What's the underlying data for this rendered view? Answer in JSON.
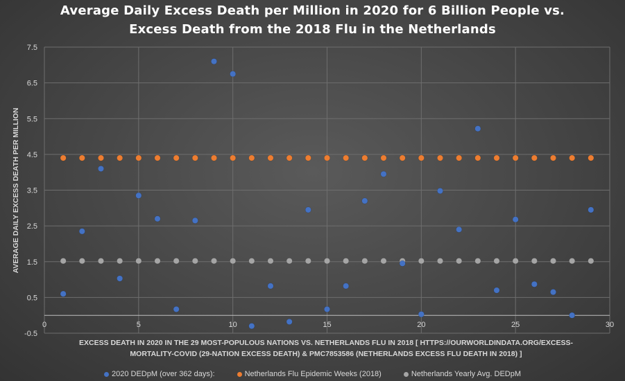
{
  "chart_data": {
    "type": "scatter",
    "title_line1": "Average Daily Excess Death per Million in 2020 for 6 Billion People vs.",
    "title_line2": "Excess Death from the 2018 Flu in the Netherlands",
    "xlabel": "EXCESS DEATH IN 2020 IN THE 29 MOST-POPULOUS NATIONS VS. NETHERLANDS FLU IN 2018 [ HTTPS://OURWORLDINDATA.ORG/EXCESS-MORTALITY-COVID (29-NATION EXCESS DEATH) & PMC7853586 (NETHERLANDS EXCESS FLU DEATH IN 2018) ]",
    "ylabel": "AVERAGE DAILY EXCESS DEATH PER MILLION",
    "xlim": [
      0,
      30
    ],
    "ylim": [
      -0.5,
      7.5
    ],
    "xticks": [
      0,
      5,
      10,
      15,
      20,
      25,
      30
    ],
    "yticks": [
      -0.5,
      0.5,
      1.5,
      2.5,
      3.5,
      4.5,
      5.5,
      6.5,
      7.5
    ],
    "ytick_labels": [
      "-0.5",
      "0.5",
      "1.5",
      "2.5",
      "3.5",
      "4.5",
      "5.5",
      "6.5",
      "7.5"
    ],
    "grid": true,
    "legend_position": "bottom",
    "series": [
      {
        "name": "2020 DEDpM (over 362 days):",
        "color": "#4472c4",
        "x": [
          1,
          2,
          3,
          4,
          5,
          6,
          7,
          8,
          9,
          10,
          11,
          12,
          13,
          14,
          15,
          16,
          17,
          18,
          19,
          20,
          21,
          22,
          23,
          24,
          25,
          26,
          27,
          28,
          29
        ],
        "y": [
          0.6,
          2.35,
          4.1,
          1.03,
          3.35,
          2.7,
          0.17,
          2.65,
          7.1,
          6.75,
          -0.3,
          0.82,
          -0.18,
          2.95,
          0.17,
          0.82,
          3.2,
          3.95,
          1.45,
          0.03,
          3.48,
          2.4,
          5.22,
          0.7,
          2.68,
          0.87,
          0.65,
          0.0,
          2.95
        ]
      },
      {
        "name": "Netherlands Flu Epidemic Weeks (2018)",
        "color": "#ed7d31",
        "x": [
          1,
          2,
          3,
          4,
          5,
          6,
          7,
          8,
          9,
          10,
          11,
          12,
          13,
          14,
          15,
          16,
          17,
          18,
          19,
          20,
          21,
          22,
          23,
          24,
          25,
          26,
          27,
          28,
          29
        ],
        "y": [
          4.4,
          4.4,
          4.4,
          4.4,
          4.4,
          4.4,
          4.4,
          4.4,
          4.4,
          4.4,
          4.4,
          4.4,
          4.4,
          4.4,
          4.4,
          4.4,
          4.4,
          4.4,
          4.4,
          4.4,
          4.4,
          4.4,
          4.4,
          4.4,
          4.4,
          4.4,
          4.4,
          4.4,
          4.4
        ]
      },
      {
        "name": "Netherlands Yearly Avg. DEDpM",
        "color": "#a5a5a5",
        "x": [
          1,
          2,
          3,
          4,
          5,
          6,
          7,
          8,
          9,
          10,
          11,
          12,
          13,
          14,
          15,
          16,
          17,
          18,
          19,
          20,
          21,
          22,
          23,
          24,
          25,
          26,
          27,
          28,
          29
        ],
        "y": [
          1.52,
          1.52,
          1.52,
          1.52,
          1.52,
          1.52,
          1.52,
          1.52,
          1.52,
          1.52,
          1.52,
          1.52,
          1.52,
          1.52,
          1.52,
          1.52,
          1.52,
          1.52,
          1.52,
          1.52,
          1.52,
          1.52,
          1.52,
          1.52,
          1.52,
          1.52,
          1.52,
          1.52,
          1.52
        ]
      }
    ]
  }
}
